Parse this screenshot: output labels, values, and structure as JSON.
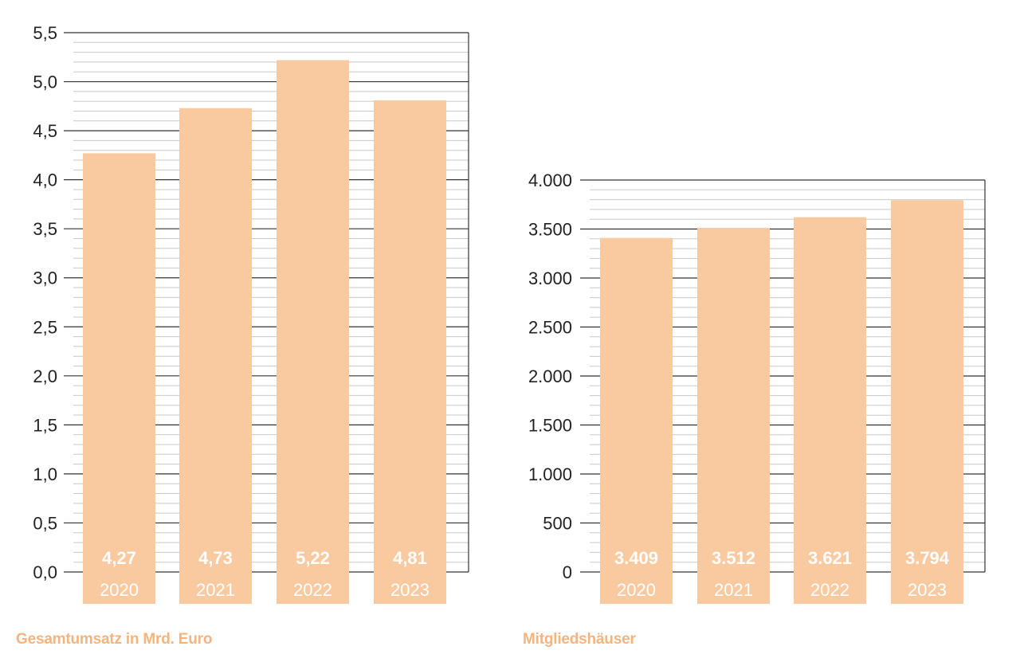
{
  "colors": {
    "bar": "#f9c9a0",
    "caption": "#f6b47d",
    "label_on_bar": "#ffffff",
    "gridline_major": "#333333",
    "gridline_minor": "#c8c8c8",
    "axis_text": "#222222"
  },
  "chart_data": [
    {
      "type": "bar",
      "title": "Gesamtumsatz in Mrd. Euro",
      "categories": [
        "2020",
        "2021",
        "2022",
        "2023"
      ],
      "values": [
        4.27,
        4.73,
        5.22,
        4.81
      ],
      "value_labels": [
        "4,27",
        "4,73",
        "5,22",
        "4,81"
      ],
      "ylim": [
        0,
        5.5
      ],
      "yticks": [
        0,
        0.5,
        1.0,
        1.5,
        2.0,
        2.5,
        3.0,
        3.5,
        4.0,
        4.5,
        5.0,
        5.5
      ],
      "ytick_labels": [
        "0,0",
        "0,5",
        "1,0",
        "1,5",
        "2,0",
        "2,5",
        "3,0",
        "3,5",
        "4,0",
        "4,5",
        "5,0",
        "5,5"
      ],
      "minor_step": 0.1,
      "grid": true,
      "xlabel": "",
      "ylabel": ""
    },
    {
      "type": "bar",
      "title": "Mitgliedshäuser",
      "categories": [
        "2020",
        "2021",
        "2022",
        "2023"
      ],
      "values": [
        3409,
        3512,
        3621,
        3794
      ],
      "value_labels": [
        "3.409",
        "3.512",
        "3.621",
        "3.794"
      ],
      "ylim": [
        0,
        4000
      ],
      "yticks": [
        0,
        500,
        1000,
        1500,
        2000,
        2500,
        3000,
        3500,
        4000
      ],
      "ytick_labels": [
        "0",
        "500",
        "1.000",
        "1.500",
        "2.000",
        "2.500",
        "3.000",
        "3.500",
        "4.000"
      ],
      "minor_step": 100,
      "grid": true,
      "xlabel": "",
      "ylabel": ""
    }
  ]
}
